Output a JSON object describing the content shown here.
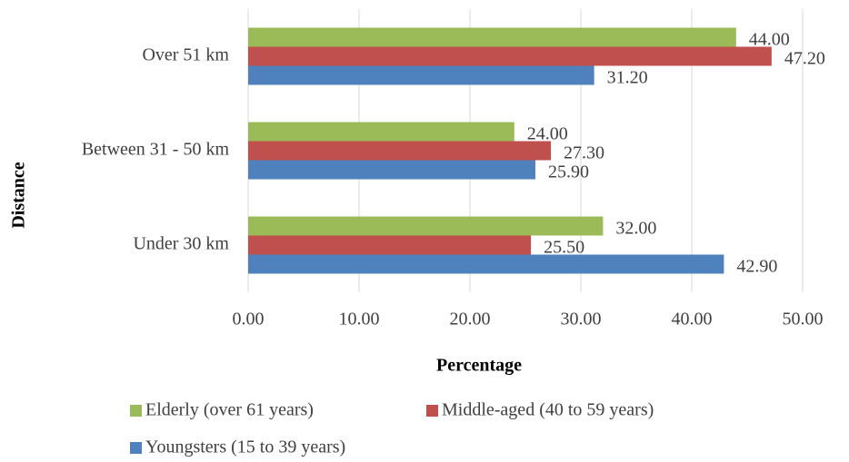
{
  "chart_data": {
    "type": "barh",
    "xlabel": "Percentage",
    "ylabel": "Distance",
    "categories": [
      "Over 51 km",
      "Between 31 - 50 km",
      "Under 30 km"
    ],
    "series": [
      {
        "name": "Elderly (over 61 years)",
        "color": "#9bbb59",
        "values": [
          44.0,
          24.0,
          32.0
        ],
        "value_labels": [
          "44.00",
          "24.00",
          "32.00"
        ]
      },
      {
        "name": "Middle-aged (40 to 59 years)",
        "color": "#c0504d",
        "values": [
          47.2,
          27.3,
          25.5
        ],
        "value_labels": [
          "47.20",
          "27.30",
          "25.50"
        ]
      },
      {
        "name": "Youngsters (15 to 39 years)",
        "color": "#4f81bd",
        "values": [
          31.2,
          25.9,
          42.9
        ],
        "value_labels": [
          "31.20",
          "25.90",
          "42.90"
        ]
      }
    ],
    "xlim": [
      0,
      50
    ],
    "xticks": [
      {
        "value": 0,
        "label": "0.00"
      },
      {
        "value": 10,
        "label": "10.00"
      },
      {
        "value": 20,
        "label": "20.00"
      },
      {
        "value": 30,
        "label": "30.00"
      },
      {
        "value": 40,
        "label": "40.00"
      },
      {
        "value": 50,
        "label": "50.00"
      }
    ],
    "grid": true
  }
}
